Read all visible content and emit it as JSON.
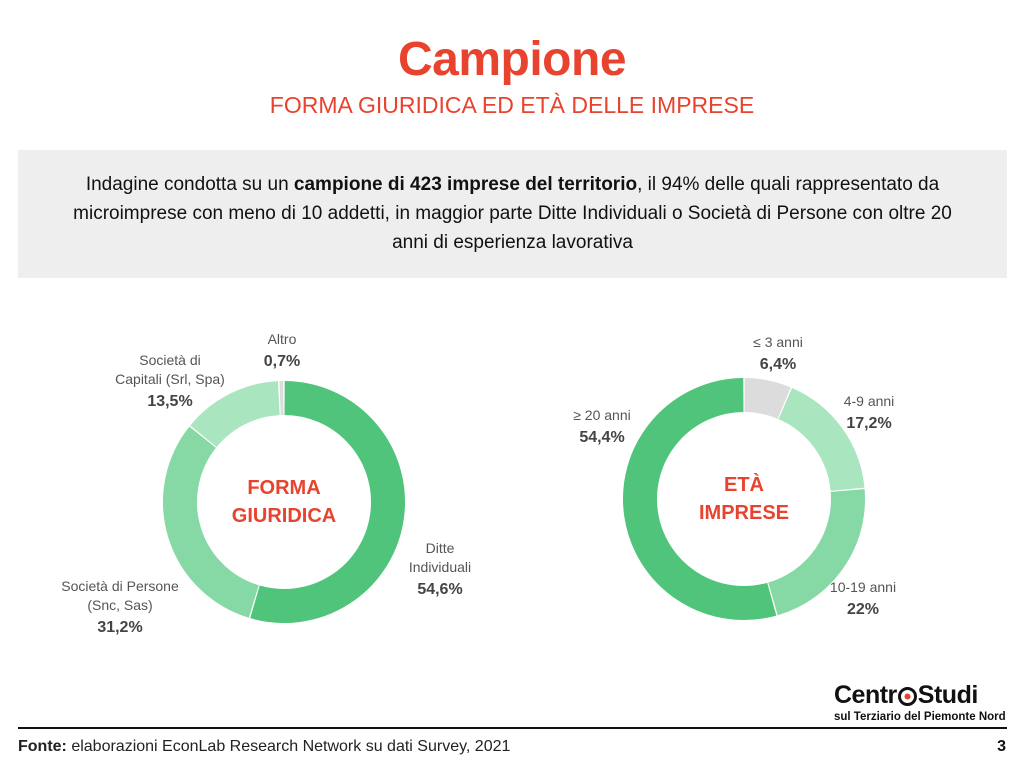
{
  "header": {
    "title": "Campione",
    "subtitle": "FORMA GIURIDICA ED ETÀ DELLE IMPRESE"
  },
  "intro": {
    "part1": "Indagine condotta su un ",
    "bold": "campione di 423 imprese del territorio",
    "part2": ", il 94% delle quali rappresentato da microimprese con meno di 10 addetti, in maggior parte Ditte Individuali o Società di Persone con oltre 20 anni di esperienza lavorativa"
  },
  "colors": {
    "accent": "#e8432e",
    "green_dark": "#4fc47a",
    "green_mid": "#86d9a4",
    "green_light": "#a9e5bf",
    "grey": "#dcdcdc"
  },
  "chart_data": [
    {
      "type": "pie",
      "center_label": [
        "FORMA",
        "GIURIDICA"
      ],
      "slices": [
        {
          "label": [
            "Ditte",
            "Individuali"
          ],
          "value": 54.6,
          "display": "54,6%",
          "color": "#4fc47a"
        },
        {
          "label": [
            "Società di Persone",
            "(Snc, Sas)"
          ],
          "value": 31.2,
          "display": "31,2%",
          "color": "#86d9a4"
        },
        {
          "label": [
            "Società di",
            "Capitali (Srl, Spa)"
          ],
          "value": 13.5,
          "display": "13,5%",
          "color": "#a9e5bf"
        },
        {
          "label": [
            "Altro"
          ],
          "value": 0.7,
          "display": "0,7%",
          "color": "#dcdcdc"
        }
      ]
    },
    {
      "type": "pie",
      "center_label": [
        "ETÀ",
        "IMPRESE"
      ],
      "slices": [
        {
          "label": [
            "≤ 3 anni"
          ],
          "value": 6.4,
          "display": "6,4%",
          "color": "#dcdcdc"
        },
        {
          "label": [
            "4-9 anni"
          ],
          "value": 17.2,
          "display": "17,2%",
          "color": "#a9e5bf"
        },
        {
          "label": [
            "10-19 anni"
          ],
          "value": 22,
          "display": "22%",
          "color": "#86d9a4"
        },
        {
          "label": [
            "≥ 20 anni"
          ],
          "value": 54.4,
          "display": "54,4%",
          "color": "#4fc47a"
        }
      ]
    }
  ],
  "logo": {
    "left": "Centr",
    "right": "Studi",
    "tagline": "sul Terziario del Piemonte Nord"
  },
  "footer": {
    "source_label": "Fonte:",
    "source_text": " elaborazioni EconLab Research Network su dati Survey, 2021",
    "page_number": "3"
  }
}
